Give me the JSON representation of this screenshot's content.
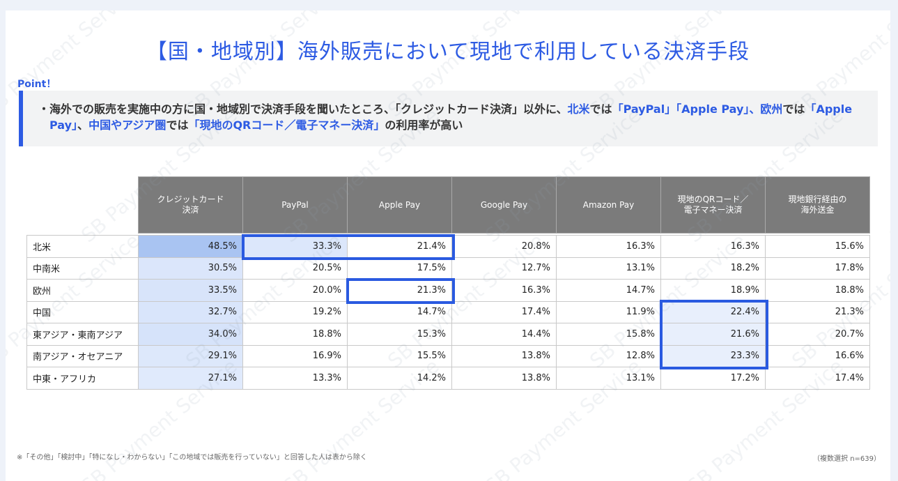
{
  "title": "【国・地域別】海外販売において現地で利用している決済手段",
  "watermark": "SB Payment Service",
  "point": {
    "label": "Point！",
    "segments": [
      {
        "text": "・海外での販売を実施中の方に国・地域別で決済手段を聞いたところ、「クレジットカード決済」以外に、",
        "color": "#333333"
      },
      {
        "text": "北米",
        "color": "#2d5be3"
      },
      {
        "text": "では",
        "color": "#333333"
      },
      {
        "text": "「PayPal」「Apple Pay」、",
        "color": "#2d5be3"
      },
      {
        "text": "欧州",
        "color": "#2d5be3"
      },
      {
        "text": "では",
        "color": "#333333"
      },
      {
        "text": "「Apple Pay」",
        "color": "#2d5be3"
      },
      {
        "text": "、",
        "color": "#333333"
      },
      {
        "text": "中国やアジア圏",
        "color": "#2d5be3"
      },
      {
        "text": "では",
        "color": "#333333"
      },
      {
        "text": "「現地のQRコード／電子マネー決済」",
        "color": "#2d5be3"
      },
      {
        "text": "の利用率が高い",
        "color": "#333333"
      }
    ]
  },
  "table": {
    "header": [
      "クレジットカード\n決済",
      "PayPal",
      "Apple Pay",
      "Google Pay",
      "Amazon Pay",
      "現地のQRコード／\n電子マネー決済",
      "現地銀行経由の\n海外送金"
    ],
    "rows": [
      [
        "北米",
        "48.5%",
        "33.3%",
        "21.4%",
        "20.8%",
        "16.3%",
        "16.3%",
        "15.6%"
      ],
      [
        "中南米",
        "30.5%",
        "20.5%",
        "17.5%",
        "12.7%",
        "13.1%",
        "18.2%",
        "17.8%"
      ],
      [
        "欧州",
        "33.5%",
        "20.0%",
        "21.3%",
        "16.3%",
        "14.7%",
        "18.9%",
        "18.8%"
      ],
      [
        "中国",
        "32.7%",
        "19.2%",
        "14.7%",
        "17.4%",
        "11.9%",
        "22.4%",
        "21.3%"
      ],
      [
        "東アジア・東南アジア",
        "34.0%",
        "18.8%",
        "15.3%",
        "14.4%",
        "15.8%",
        "21.6%",
        "20.7%"
      ],
      [
        "南アジア・オセアニア",
        "29.1%",
        "16.9%",
        "15.5%",
        "13.8%",
        "12.8%",
        "23.3%",
        "16.6%"
      ],
      [
        "中東・アフリカ",
        "27.1%",
        "13.3%",
        "14.2%",
        "13.8%",
        "13.1%",
        "17.2%",
        "17.4%"
      ]
    ]
  },
  "footnote": "※「その他」「検討中」「特になし・わからない」「この地域では販売を行っていない」と回答した人は表から除く",
  "sample_note": "（複数選択 n=639）"
}
